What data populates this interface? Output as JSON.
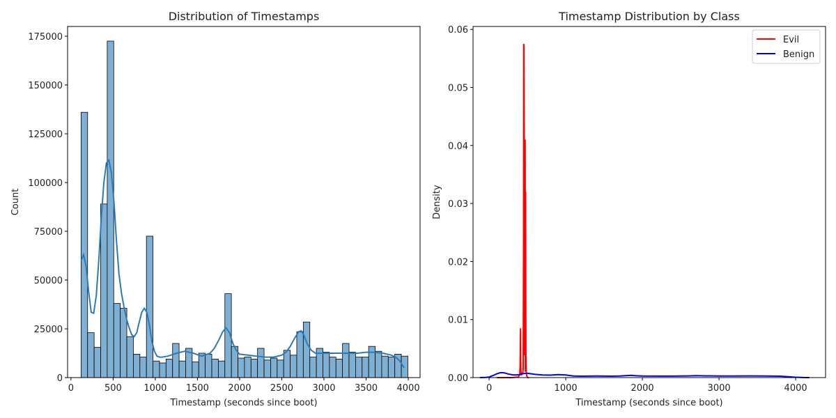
{
  "chart_data": [
    {
      "type": "bar",
      "subtype": "histogram-with-kde",
      "title": "Distribution of Timestamps",
      "xlabel": "Timestamp (seconds since boot)",
      "ylabel": "Count",
      "xlim": [
        -40,
        4140
      ],
      "ylim": [
        0,
        180000
      ],
      "xticks": [
        0,
        500,
        1000,
        1500,
        2000,
        2500,
        3000,
        3500,
        4000
      ],
      "yticks": [
        0,
        25000,
        50000,
        75000,
        100000,
        125000,
        150000,
        175000
      ],
      "bin_start": 120,
      "bin_width": 77.5,
      "bar_color": "#7fb0d3",
      "kde_color": "#2b7bba",
      "values": [
        136000,
        23000,
        15500,
        89000,
        172500,
        38000,
        35500,
        21000,
        12000,
        10500,
        72500,
        8500,
        7500,
        9500,
        17500,
        8500,
        15000,
        8000,
        12500,
        12000,
        9500,
        8500,
        43000,
        16000,
        10000,
        10500,
        9500,
        15000,
        9000,
        10000,
        9000,
        14000,
        11500,
        23500,
        28500,
        10500,
        15000,
        13000,
        10500,
        9500,
        17500,
        13000,
        10500,
        10500,
        16000,
        13500,
        11000,
        10500,
        12000,
        11000
      ],
      "kde": {
        "x": [
          120,
          150,
          180,
          210,
          240,
          270,
          300,
          330,
          360,
          390,
          420,
          450,
          480,
          510,
          540,
          570,
          600,
          630,
          660,
          690,
          720,
          750,
          780,
          810,
          840,
          870,
          900,
          930,
          960,
          990,
          1020,
          1050,
          1080,
          1150,
          1250,
          1350,
          1450,
          1550,
          1650,
          1700,
          1750,
          1800,
          1840,
          1880,
          1920,
          1960,
          2000,
          2100,
          2200,
          2300,
          2400,
          2500,
          2550,
          2600,
          2650,
          2700,
          2730,
          2760,
          2800,
          2850,
          2900,
          3000,
          3100,
          3200,
          3300,
          3400,
          3500,
          3600,
          3700,
          3800,
          3850,
          3900,
          3950
        ],
        "y": [
          60000,
          63000,
          57000,
          44000,
          33500,
          33000,
          42000,
          60000,
          82000,
          100000,
          110000,
          111500,
          105000,
          90000,
          70000,
          53000,
          43000,
          36000,
          30000,
          25500,
          22000,
          21000,
          23000,
          28500,
          33500,
          35500,
          33500,
          27000,
          18500,
          13500,
          11000,
          10500,
          10500,
          11000,
          12500,
          13500,
          12500,
          11000,
          12500,
          15000,
          19000,
          23500,
          25500,
          23000,
          17500,
          14000,
          12000,
          11500,
          11000,
          10500,
          10500,
          11500,
          13000,
          16000,
          20000,
          23500,
          24000,
          22000,
          17500,
          14000,
          12500,
          12500,
          12500,
          12500,
          12500,
          12500,
          13000,
          13000,
          12500,
          11500,
          10500,
          8500,
          5000
        ]
      }
    },
    {
      "type": "line",
      "subtype": "kde",
      "title": "Timestamp Distribution by Class",
      "xlabel": "Timestamp (seconds since boot)",
      "ylabel": "Density",
      "xlim": [
        -210,
        4390
      ],
      "ylim": [
        0,
        0.0605
      ],
      "xticks": [
        0,
        1000,
        2000,
        3000,
        4000
      ],
      "yticks": [
        0.0,
        0.01,
        0.02,
        0.03,
        0.04,
        0.05,
        0.06
      ],
      "ytick_labels": [
        "0.00",
        "0.01",
        "0.02",
        "0.03",
        "0.04",
        "0.05",
        "0.06"
      ],
      "legend_position": "top-right",
      "series": [
        {
          "name": "Evil",
          "color": "#ff0000",
          "x": [
            100,
            300,
            380,
            400,
            405,
            410,
            412,
            415,
            420,
            425,
            430,
            435,
            440,
            445,
            450,
            452,
            455,
            458,
            460,
            463,
            466,
            470,
            473,
            476,
            480,
            485,
            490,
            500,
            510,
            520
          ],
          "y": [
            0,
            0,
            0.0001,
            0.0005,
            0.002,
            0.0085,
            0.004,
            0.0005,
            0.0005,
            0.0009,
            0.0006,
            0.0007,
            0.0009,
            0.0015,
            0.024,
            0.0575,
            0.057,
            0.041,
            0.004,
            0.004,
            0.0405,
            0.041,
            0.001,
            0.032,
            0.0045,
            0.001,
            0.0003,
            0.0001,
            0,
            0
          ]
        },
        {
          "name": "Benign",
          "color": "#0000ff",
          "x": [
            -120,
            -50,
            0,
            50,
            100,
            150,
            200,
            250,
            300,
            350,
            400,
            450,
            500,
            600,
            700,
            800,
            900,
            1000,
            1100,
            1200,
            1300,
            1400,
            1500,
            1600,
            1700,
            1800,
            1850,
            1900,
            2000,
            2200,
            2400,
            2600,
            2700,
            2800,
            3000,
            3200,
            3400,
            3600,
            3800,
            3900,
            4000,
            4100,
            4180
          ],
          "y": [
            0.0,
            2e-05,
            0.0001,
            0.00035,
            0.00065,
            0.00085,
            0.0008,
            0.00062,
            0.00048,
            0.00045,
            0.00052,
            0.0007,
            0.00075,
            0.00055,
            0.00045,
            0.00042,
            0.0005,
            0.00045,
            0.00028,
            0.00024,
            0.00025,
            0.00026,
            0.00025,
            0.00024,
            0.00026,
            0.00035,
            0.00038,
            0.00033,
            0.00026,
            0.00025,
            0.00025,
            0.00029,
            0.00033,
            0.0003,
            0.00028,
            0.00028,
            0.00029,
            0.00028,
            0.00024,
            0.00015,
            6e-05,
            1e-05,
            0.0
          ]
        }
      ]
    }
  ]
}
